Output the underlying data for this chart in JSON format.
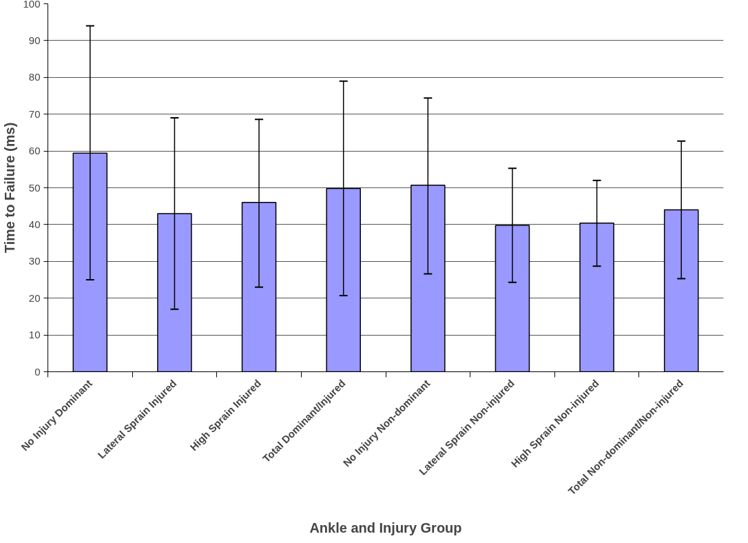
{
  "chart_data": {
    "type": "bar",
    "xlabel": "Ankle and Injury Group",
    "ylabel": "Time to Failure (ms)",
    "categories": [
      "No Injury Dominant",
      "Lateral Sprain Injured",
      "High Sprain Injured",
      "Total Dominant/Injured",
      "No Injury Non-dominant",
      "Lateral Sprain Non-injured",
      "High Sprain Non-injured",
      "Total Non-dominant/Non-injured"
    ],
    "values": [
      59.4,
      43,
      46,
      49.8,
      50.7,
      39.8,
      40.4,
      44
    ],
    "errors": [
      [
        25,
        94
      ],
      [
        17,
        69
      ],
      [
        23,
        68.6
      ],
      [
        20.7,
        79
      ],
      [
        26.6,
        74.4
      ],
      [
        24.3,
        55.3
      ],
      [
        28.7,
        52
      ],
      [
        25.3,
        62.7
      ]
    ],
    "color": "#9999ff",
    "ylim": [
      0,
      100
    ],
    "yticks": [
      0,
      10,
      20,
      30,
      40,
      50,
      60,
      70,
      80,
      90,
      100
    ],
    "grid": "y"
  }
}
